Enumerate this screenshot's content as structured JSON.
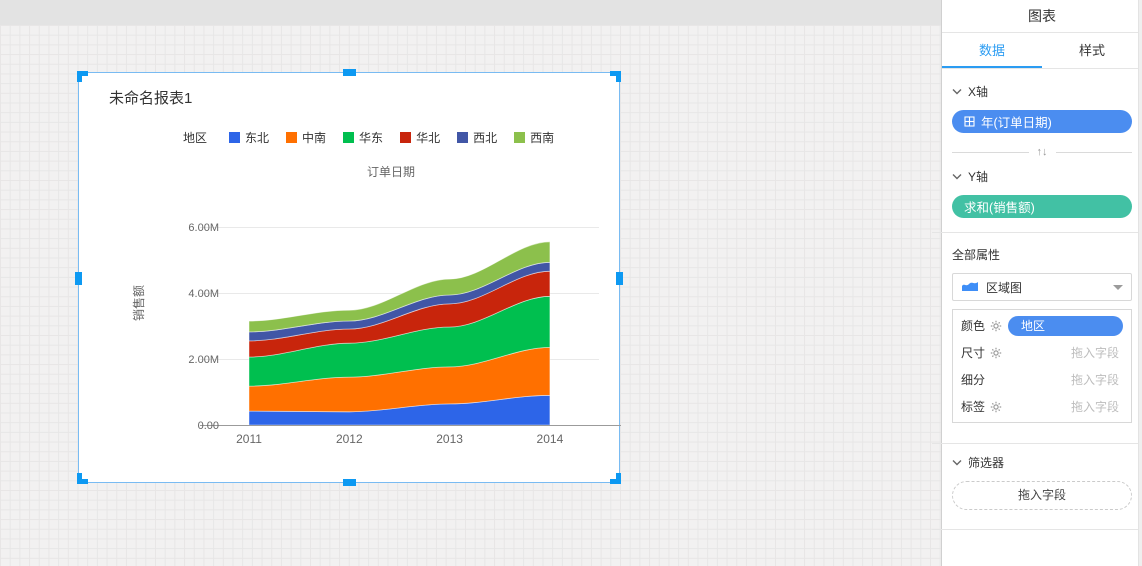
{
  "canvas": {
    "widget": {
      "title": "未命名报表1",
      "selection_color": "#0D99F2"
    }
  },
  "chart_data": {
    "type": "area",
    "stacked": true,
    "title": "未命名报表1",
    "legend_title": "地区",
    "legend_position": "top",
    "xlabel": "订单日期",
    "ylabel": "销售额",
    "unit": "M",
    "categories": [
      "2011",
      "2012",
      "2013",
      "2014"
    ],
    "series": [
      {
        "name": "东北",
        "color": "#2D65E8",
        "values": [
          0.42,
          0.4,
          0.64,
          0.9
        ]
      },
      {
        "name": "中南",
        "color": "#FF7000",
        "values": [
          0.76,
          1.05,
          1.12,
          1.45
        ]
      },
      {
        "name": "华东",
        "color": "#00BF4F",
        "values": [
          0.88,
          1.03,
          1.21,
          1.55
        ]
      },
      {
        "name": "华北",
        "color": "#C8250C",
        "values": [
          0.49,
          0.43,
          0.7,
          0.76
        ]
      },
      {
        "name": "西北",
        "color": "#4156A6",
        "values": [
          0.27,
          0.24,
          0.27,
          0.27
        ]
      },
      {
        "name": "西南",
        "color": "#8CC04C",
        "values": [
          0.33,
          0.33,
          0.48,
          0.62
        ]
      }
    ],
    "ylim": [
      0,
      6
    ],
    "yticks": [
      {
        "value": 0,
        "label": "0.00"
      },
      {
        "value": 2,
        "label": "2.00M"
      },
      {
        "value": 4,
        "label": "4.00M"
      },
      {
        "value": 6,
        "label": "6.00M"
      }
    ],
    "grid": true
  },
  "panel": {
    "accent": "#2B9CF2",
    "title": "图表",
    "tabs": [
      {
        "label": "数据",
        "active": true
      },
      {
        "label": "样式",
        "active": false
      }
    ],
    "x_axis": {
      "label": "X轴",
      "pill": {
        "text": "年(订单日期)",
        "color": "#4B8DF0",
        "icon": "field-grid-icon"
      }
    },
    "swap_icon": "↑↓",
    "y_axis": {
      "label": "Y轴",
      "pill": {
        "text": "求和(销售额)",
        "color": "#42C1A4"
      }
    },
    "all_props_label": "全部属性",
    "chart_type": {
      "label": "区域图",
      "icon": "area-chart-icon"
    },
    "attributes": [
      {
        "label": "颜色",
        "has_gear": true,
        "pill": {
          "text": "地区",
          "color": "#4B8DF0"
        }
      },
      {
        "label": "尺寸",
        "has_gear": true,
        "placeholder": "拖入字段"
      },
      {
        "label": "细分",
        "has_gear": false,
        "placeholder": "拖入字段"
      },
      {
        "label": "标签",
        "has_gear": true,
        "placeholder": "拖入字段"
      }
    ],
    "filter": {
      "label": "筛选器",
      "drop_placeholder": "拖入字段"
    }
  }
}
